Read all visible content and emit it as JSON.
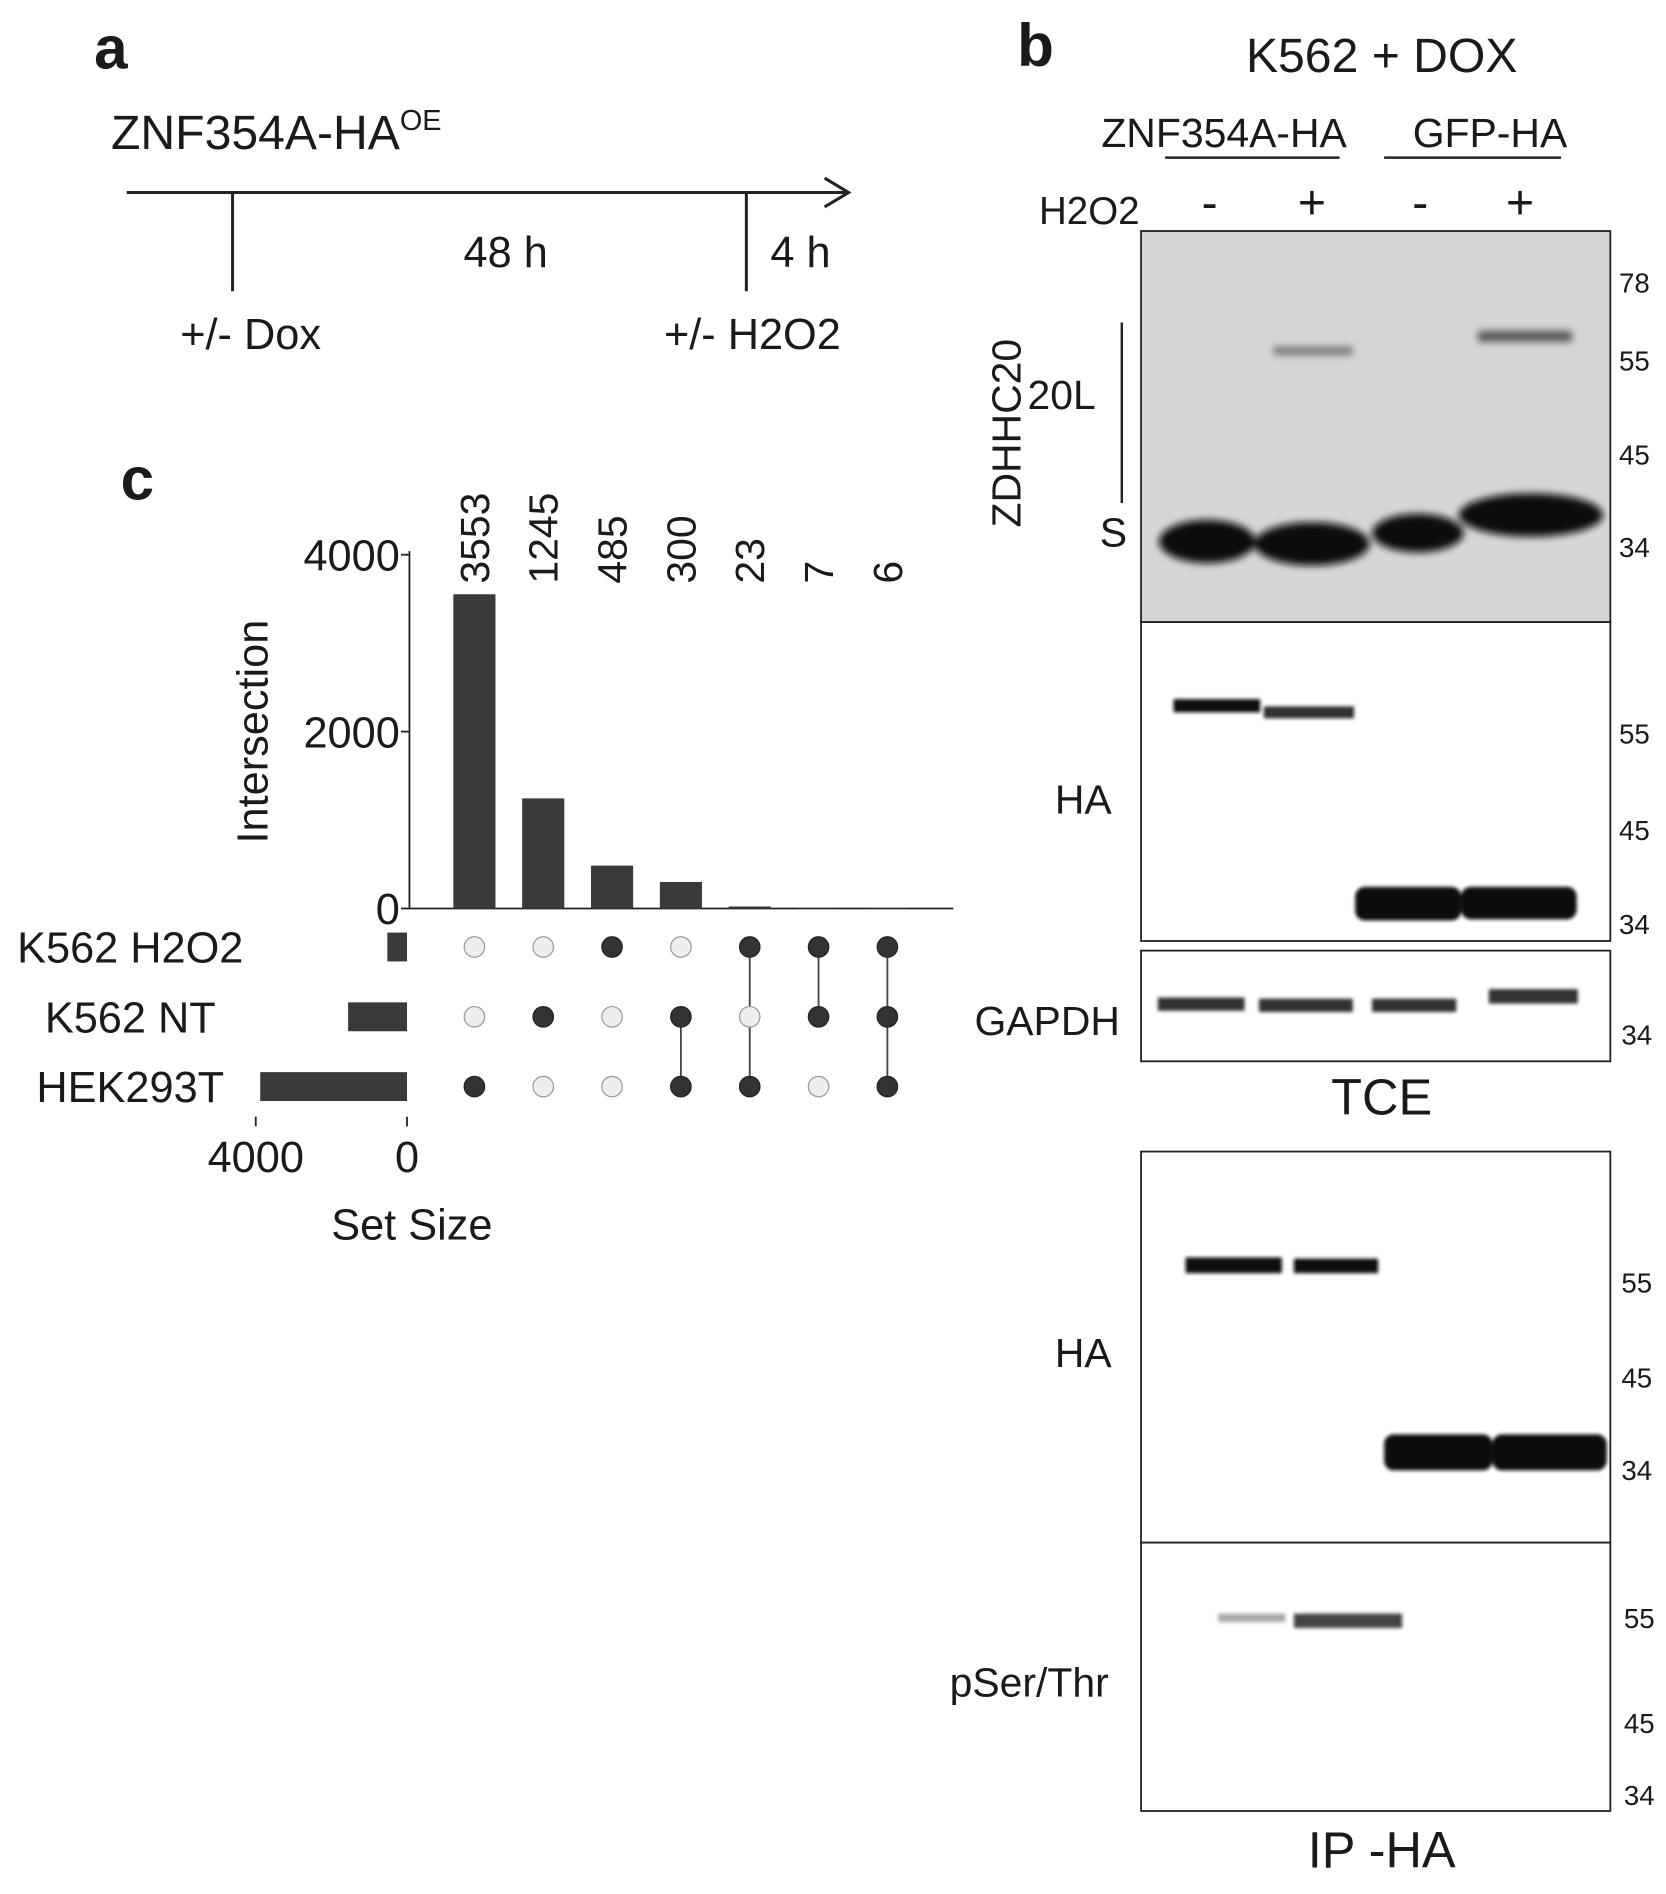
{
  "panel_a": {
    "label": "a",
    "construct": "ZNF354A-HA",
    "construct_sup": "OE",
    "interval_1": "48 h",
    "interval_2": "4 h",
    "step_1": "+/- Dox",
    "step_2": "+/- H2O2"
  },
  "panel_b": {
    "label": "b",
    "title": "K562 + DOX",
    "group_1": "ZNF354A-HA",
    "group_2": "GFP-HA",
    "treatment": "H2O2",
    "lanes": [
      "-",
      "+",
      "-",
      "+"
    ],
    "blot_labels": {
      "zdhhc20": "ZDHHC20",
      "long": "20L",
      "short": "S",
      "ha_tce": "HA",
      "gapdh": "GAPDH",
      "ha_ip": "HA",
      "pser": "pSer/Thr"
    },
    "section_tce": "TCE",
    "section_ip": "IP -HA",
    "markers": {
      "box1": [
        "78",
        "55",
        "45",
        "34"
      ],
      "box2": [
        "55",
        "45",
        "34"
      ],
      "box3": [
        "34"
      ],
      "box4": [
        "55",
        "45",
        "34"
      ],
      "box5": [
        "55",
        "45",
        "34"
      ]
    }
  },
  "chart_data": {
    "type": "upset",
    "label": "c",
    "y_label": "Intersection",
    "set_size_label": "Set Size",
    "color": "#3a3a3a",
    "values": [
      3553,
      1245,
      485,
      300,
      23,
      7,
      6
    ],
    "ylim": [
      0,
      4000
    ],
    "yticks": [
      0,
      2000,
      4000
    ],
    "sets": [
      "K562 H2O2",
      "K562 NT",
      "HEK293T"
    ],
    "set_sizes": [
      521,
      1558,
      3882
    ],
    "set_size_lim": [
      0,
      4200
    ],
    "set_size_ticks": [
      0,
      4000
    ],
    "matrix": [
      [
        false,
        false,
        true,
        false,
        true,
        true,
        true
      ],
      [
        false,
        true,
        false,
        true,
        false,
        true,
        true
      ],
      [
        true,
        false,
        false,
        true,
        true,
        false,
        true
      ]
    ]
  }
}
